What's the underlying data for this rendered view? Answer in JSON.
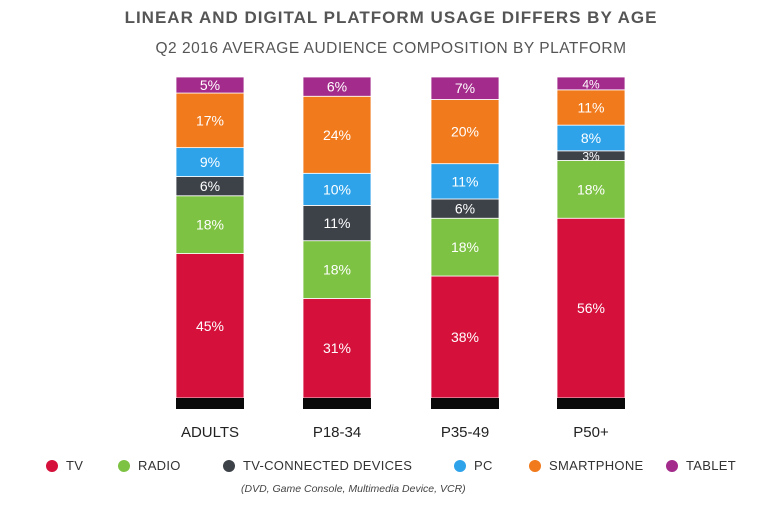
{
  "chart_data": {
    "type": "bar",
    "stacked": true,
    "title": "LINEAR AND DIGITAL PLATFORM USAGE DIFFERS BY AGE",
    "subtitle": "Q2 2016 AVERAGE AUDIENCE COMPOSITION BY PLATFORM",
    "categories": [
      "ADULTS",
      "P18-34",
      "P35-49",
      "P50+"
    ],
    "series": [
      {
        "name": "TV",
        "color": "#d5103b",
        "values": [
          45,
          31,
          38,
          56
        ],
        "labels": [
          "45%",
          "31%",
          "38%",
          "56%"
        ]
      },
      {
        "name": "RADIO",
        "color": "#7dc242",
        "values": [
          18,
          18,
          18,
          18
        ],
        "labels": [
          "18%",
          "18%",
          "18%",
          "18%"
        ]
      },
      {
        "name": "TV-CONNECTED DEVICES",
        "color": "#3d4249",
        "values": [
          6,
          11,
          6,
          3
        ],
        "labels": [
          "6%",
          "11%",
          "6%",
          "3%"
        ]
      },
      {
        "name": "PC",
        "color": "#2ea3ea",
        "values": [
          9,
          10,
          11,
          8
        ],
        "labels": [
          "9%",
          "10%",
          "11%",
          "8%"
        ]
      },
      {
        "name": "SMARTPHONE",
        "color": "#f07a1c",
        "values": [
          17,
          24,
          20,
          11
        ],
        "labels": [
          "17%",
          "24%",
          "20%",
          "11%"
        ]
      },
      {
        "name": "TABLET",
        "color": "#a32b8b",
        "values": [
          5,
          6,
          7,
          4
        ],
        "labels": [
          "5%",
          "6%",
          "7%",
          "4%"
        ]
      }
    ],
    "legend_note": "(DVD, Game Console, Multimedia Device, VCR)",
    "legend_position": "bottom"
  }
}
